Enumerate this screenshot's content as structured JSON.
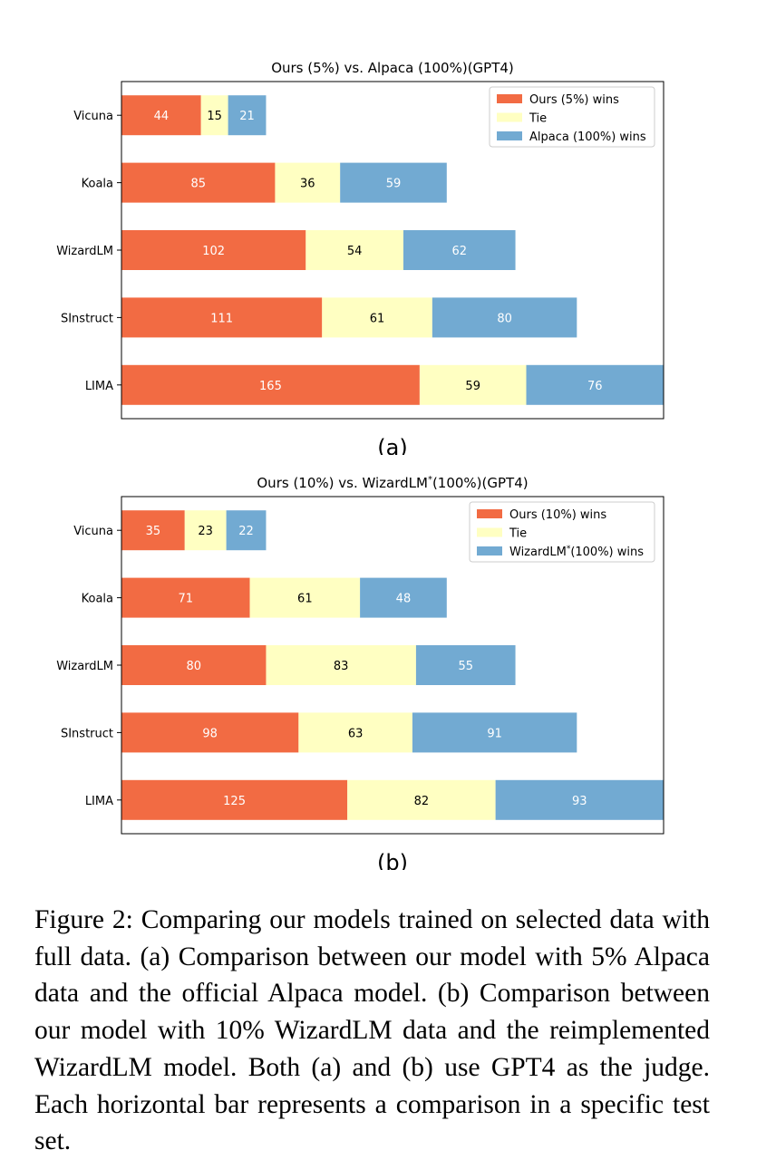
{
  "chart_data": [
    {
      "type": "bar",
      "orientation": "horizontal",
      "stacked": true,
      "title": "Ours (5%) vs. Alpaca (100%)(GPT4)",
      "panel_label": "(a)",
      "categories": [
        "Vicuna",
        "Koala",
        "WizardLM",
        "SInstruct",
        "LIMA"
      ],
      "series": [
        {
          "name": "Ours (5%) wins",
          "color": "#f26b43",
          "label_color": "#ffffff",
          "values": [
            44,
            85,
            102,
            111,
            165
          ]
        },
        {
          "name": "Tie",
          "color": "#ffffc2",
          "label_color": "#000000",
          "values": [
            15,
            36,
            54,
            61,
            59
          ]
        },
        {
          "name": "Alpaca (100%) wins",
          "color": "#72aad2",
          "label_color": "#ffffff",
          "values": [
            21,
            59,
            62,
            80,
            76
          ]
        }
      ],
      "xlim": [
        0,
        300
      ],
      "legend": "top-right",
      "grid": false
    },
    {
      "type": "bar",
      "orientation": "horizontal",
      "stacked": true,
      "title": "Ours (10%) vs. WizardLM*(100%)(GPT4)",
      "title_main": "Ours (10%) vs. WizardLM",
      "title_sup": "*",
      "title_tail": "(100%)(GPT4)",
      "panel_label": "(b)",
      "categories": [
        "Vicuna",
        "Koala",
        "WizardLM",
        "SInstruct",
        "LIMA"
      ],
      "series": [
        {
          "name": "Ours (10%) wins",
          "color": "#f26b43",
          "label_color": "#ffffff",
          "values": [
            35,
            71,
            80,
            98,
            125
          ]
        },
        {
          "name": "Tie",
          "color": "#ffffc2",
          "label_color": "#000000",
          "values": [
            23,
            61,
            83,
            63,
            82
          ]
        },
        {
          "name": "WizardLM*(100%) wins",
          "name_main": "WizardLM",
          "name_sup": "*",
          "name_tail": "(100%) wins",
          "color": "#72aad2",
          "label_color": "#ffffff",
          "values": [
            22,
            48,
            55,
            91,
            93
          ]
        }
      ],
      "xlim": [
        0,
        300
      ],
      "legend": "top-right",
      "grid": false
    }
  ],
  "caption": {
    "text": "Figure 2: Comparing our models trained on selected data with full data. (a) Comparison between our model with 5% Alpaca data and the official Alpaca model. (b) Comparison between our model with 10% WizardLM data and the reimplemented WizardLM model. Both (a) and (b) use GPT4 as the judge. Each horizontal bar represents a comparison in a specific test set."
  }
}
